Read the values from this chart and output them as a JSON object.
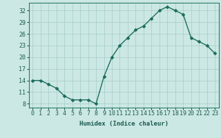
{
  "x": [
    0,
    1,
    2,
    3,
    4,
    5,
    6,
    7,
    8,
    9,
    10,
    11,
    12,
    13,
    14,
    15,
    16,
    17,
    18,
    19,
    20,
    21,
    22,
    23
  ],
  "y": [
    14,
    14,
    13,
    12,
    10,
    9,
    9,
    9,
    8,
    15,
    20,
    23,
    25,
    27,
    28,
    30,
    32,
    33,
    32,
    31,
    25,
    24,
    23,
    21
  ],
  "line_color": "#1a6b5a",
  "marker_color": "#1a6b5a",
  "bg_color": "#cce8e4",
  "grid_color": "#aacfcb",
  "xlabel": "Humidex (Indice chaleur)",
  "ylim": [
    7,
    34
  ],
  "xlim": [
    -0.5,
    23.5
  ],
  "yticks": [
    8,
    11,
    14,
    17,
    20,
    23,
    26,
    29,
    32
  ],
  "xticks": [
    0,
    1,
    2,
    3,
    4,
    5,
    6,
    7,
    8,
    9,
    10,
    11,
    12,
    13,
    14,
    15,
    16,
    17,
    18,
    19,
    20,
    21,
    22,
    23
  ],
  "xlabel_fontsize": 6.5,
  "tick_fontsize": 6,
  "line_width": 1.0,
  "marker_size": 2.5
}
